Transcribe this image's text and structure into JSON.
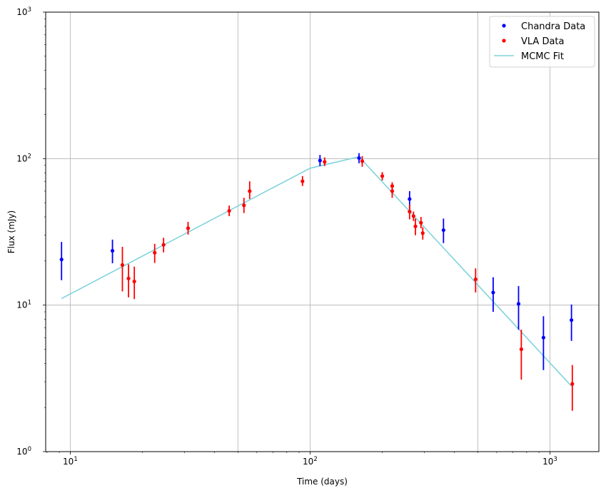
{
  "chart_data": {
    "type": "scatter",
    "xlabel": "Time (days)",
    "ylabel": "Flux (mJy)",
    "xscale": "log",
    "yscale": "log",
    "xlim": [
      7.9,
      1600
    ],
    "ylim": [
      1,
      1000
    ],
    "grid": true,
    "legend_position": "top-right",
    "x_ticks": [
      {
        "value": 10,
        "base": "10",
        "exp": "1"
      },
      {
        "value": 100,
        "base": "10",
        "exp": "2"
      },
      {
        "value": 1000,
        "base": "10",
        "exp": "3"
      }
    ],
    "y_ticks": [
      {
        "value": 1,
        "base": "10",
        "exp": "0"
      },
      {
        "value": 10,
        "base": "10",
        "exp": "1"
      },
      {
        "value": 100,
        "base": "10",
        "exp": "2"
      },
      {
        "value": 1000,
        "base": "10",
        "exp": "3"
      }
    ],
    "x_minor_grid": [
      50,
      500
    ],
    "series": [
      {
        "name": "Chandra Data",
        "kind": "errorbar",
        "color": "#0000ff",
        "points": [
          {
            "x": 9.2,
            "y": 20.5,
            "lo": 14.8,
            "hi": 27.0
          },
          {
            "x": 15.0,
            "y": 23.5,
            "lo": 19.3,
            "hi": 28.0
          },
          {
            "x": 110,
            "y": 97,
            "lo": 89,
            "hi": 106
          },
          {
            "x": 160,
            "y": 101,
            "lo": 93,
            "hi": 109
          },
          {
            "x": 260,
            "y": 53,
            "lo": 45,
            "hi": 60
          },
          {
            "x": 360,
            "y": 32.5,
            "lo": 26.5,
            "hi": 39
          },
          {
            "x": 580,
            "y": 12.2,
            "lo": 9.0,
            "hi": 15.5
          },
          {
            "x": 740,
            "y": 10.2,
            "lo": 6.8,
            "hi": 13.5
          },
          {
            "x": 940,
            "y": 6.0,
            "lo": 3.6,
            "hi": 8.4
          },
          {
            "x": 1230,
            "y": 7.9,
            "lo": 5.7,
            "hi": 10.1
          }
        ]
      },
      {
        "name": "VLA Data",
        "kind": "errorbar",
        "color": "#ff0000",
        "points": [
          {
            "x": 16.5,
            "y": 18.8,
            "lo": 12.4,
            "hi": 25.0
          },
          {
            "x": 17.5,
            "y": 15.2,
            "lo": 11.3,
            "hi": 19.0
          },
          {
            "x": 18.5,
            "y": 14.5,
            "lo": 11.0,
            "hi": 18.3
          },
          {
            "x": 22.5,
            "y": 22.8,
            "lo": 19.4,
            "hi": 26.2
          },
          {
            "x": 24.5,
            "y": 25.8,
            "lo": 22.9,
            "hi": 28.8
          },
          {
            "x": 31,
            "y": 33.5,
            "lo": 30.3,
            "hi": 37.0
          },
          {
            "x": 46,
            "y": 44,
            "lo": 40.5,
            "hi": 47.8
          },
          {
            "x": 53,
            "y": 48,
            "lo": 42.5,
            "hi": 54
          },
          {
            "x": 56,
            "y": 60,
            "lo": 53,
            "hi": 70
          },
          {
            "x": 93,
            "y": 70,
            "lo": 65,
            "hi": 76
          },
          {
            "x": 115,
            "y": 95,
            "lo": 89,
            "hi": 102
          },
          {
            "x": 165,
            "y": 96,
            "lo": 88,
            "hi": 104
          },
          {
            "x": 200,
            "y": 76,
            "lo": 71,
            "hi": 81
          },
          {
            "x": 220,
            "y": 65,
            "lo": 61,
            "hi": 69
          },
          {
            "x": 220,
            "y": 60,
            "lo": 54,
            "hi": 66
          },
          {
            "x": 260,
            "y": 43.5,
            "lo": 38.5,
            "hi": 48.5
          },
          {
            "x": 270,
            "y": 40.5,
            "lo": 37.5,
            "hi": 43.5
          },
          {
            "x": 275,
            "y": 34.5,
            "lo": 30,
            "hi": 39
          },
          {
            "x": 290,
            "y": 36.5,
            "lo": 33.5,
            "hi": 40
          },
          {
            "x": 295,
            "y": 31,
            "lo": 28,
            "hi": 34
          },
          {
            "x": 490,
            "y": 15,
            "lo": 12.2,
            "hi": 17.8
          },
          {
            "x": 760,
            "y": 5.0,
            "lo": 3.1,
            "hi": 6.8
          },
          {
            "x": 1240,
            "y": 2.9,
            "lo": 1.9,
            "hi": 3.9
          }
        ]
      },
      {
        "name": "MCMC Fit",
        "kind": "line",
        "color": "#7fd3dc",
        "points": [
          {
            "x": 9.2,
            "y": 11.1
          },
          {
            "x": 100,
            "y": 86
          },
          {
            "x": 160,
            "y": 103
          },
          {
            "x": 1230,
            "y": 2.8
          }
        ]
      }
    ]
  }
}
